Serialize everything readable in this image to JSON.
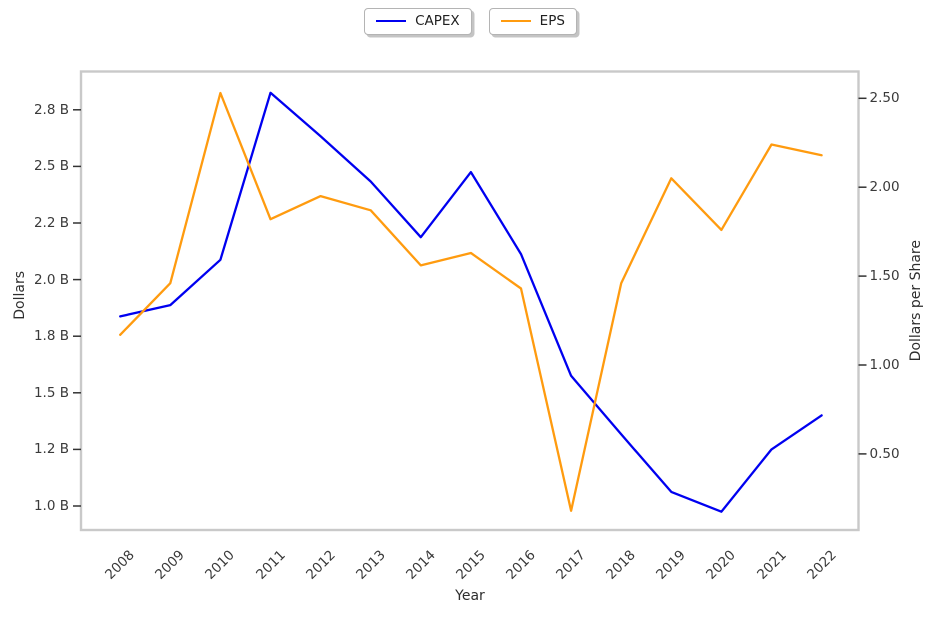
{
  "chart_data": {
    "type": "line",
    "x": [
      2008,
      2009,
      2010,
      2011,
      2012,
      2013,
      2014,
      2015,
      2016,
      2017,
      2018,
      2019,
      2020,
      2021,
      2022
    ],
    "series": [
      {
        "name": "CAPEX",
        "axis": "left",
        "color": "#0000f0",
        "units": "billions of dollars",
        "values": [
          1.87,
          1.91,
          2.07,
          2.89,
          2.66,
          2.42,
          2.15,
          2.47,
          2.09,
          1.59,
          1.28,
          1.05,
          0.98,
          1.2,
          1.38
        ]
      },
      {
        "name": "EPS",
        "axis": "right",
        "color": "#ff9b0f",
        "units": "dollars per share",
        "values": [
          1.17,
          1.46,
          2.53,
          1.82,
          1.95,
          1.87,
          1.56,
          1.63,
          1.43,
          0.18,
          1.46,
          2.05,
          1.76,
          2.24,
          2.18
        ]
      }
    ],
    "xlabel": "Year",
    "left_axis": {
      "label": "Dollars",
      "tick_labels": [
        "2.8 B",
        "2.5 B",
        "2.2 B",
        "2.0 B",
        "1.8 B",
        "1.5 B",
        "1.2 B",
        "1.0 B"
      ],
      "tick_values": [
        2.8,
        2.5,
        2.2,
        2.0,
        1.8,
        1.5,
        1.2,
        1.0
      ]
    },
    "right_axis": {
      "label": "Dollars per Share",
      "tick_labels": [
        "2.50",
        "2.00",
        "1.50",
        "1.00",
        "0.50"
      ],
      "tick_values": [
        2.5,
        2.0,
        1.5,
        1.0,
        0.5
      ]
    },
    "x_tick_labels": [
      "2008",
      "2009",
      "2010",
      "2011",
      "2012",
      "2013",
      "2014",
      "2015",
      "2016",
      "2017",
      "2018",
      "2019",
      "2020",
      "2021",
      "2022"
    ],
    "legend": {
      "entries": [
        "CAPEX",
        "EPS"
      ],
      "position": "top-center"
    },
    "grid": false,
    "spine_color": "#c9c9c9",
    "tick_mark_color": "#333333"
  }
}
